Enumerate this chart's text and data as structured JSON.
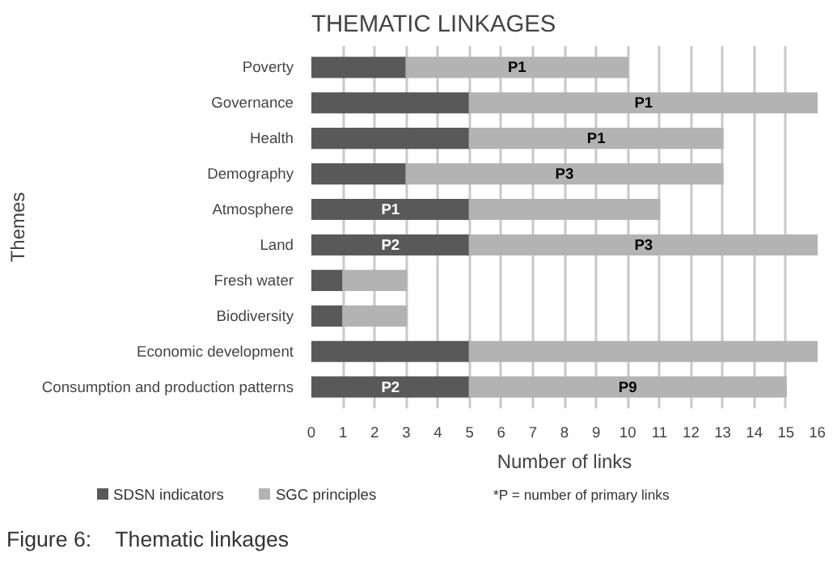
{
  "chart_data": {
    "type": "bar",
    "orientation": "horizontal",
    "stacked": true,
    "title": "THEMATIC LINKAGES",
    "xlabel": "Number of links",
    "ylabel": "Themes",
    "categories": [
      "Poverty",
      "Governance",
      "Health",
      "Demography",
      "Atmosphere",
      "Land",
      "Fresh water",
      "Biodiversity",
      "Economic development",
      "Consumption and production patterns"
    ],
    "series": [
      {
        "name": "SDSN indicators",
        "color": "#595959",
        "values": [
          3,
          5,
          5,
          3,
          5,
          5,
          1,
          1,
          5,
          5
        ],
        "value_labels": [
          null,
          null,
          null,
          null,
          "P1",
          "P2",
          null,
          null,
          null,
          "P2"
        ]
      },
      {
        "name": "SGC principles",
        "color": "#b3b3b3",
        "values": [
          7,
          11,
          8,
          10,
          6,
          11,
          2,
          2,
          11,
          10
        ],
        "value_labels": [
          "P1",
          "P1",
          "P1",
          "P3",
          null,
          "P3",
          null,
          null,
          null,
          "P9"
        ]
      }
    ],
    "xlim": [
      0,
      16
    ],
    "xticks": [
      0,
      1,
      2,
      3,
      4,
      5,
      6,
      7,
      8,
      9,
      10,
      11,
      12,
      13,
      14,
      15,
      16
    ],
    "grid": "x",
    "legend": "bottom",
    "annotations": [
      "*P = number of primary links",
      "Figure 6:    Thematic linkages"
    ]
  }
}
